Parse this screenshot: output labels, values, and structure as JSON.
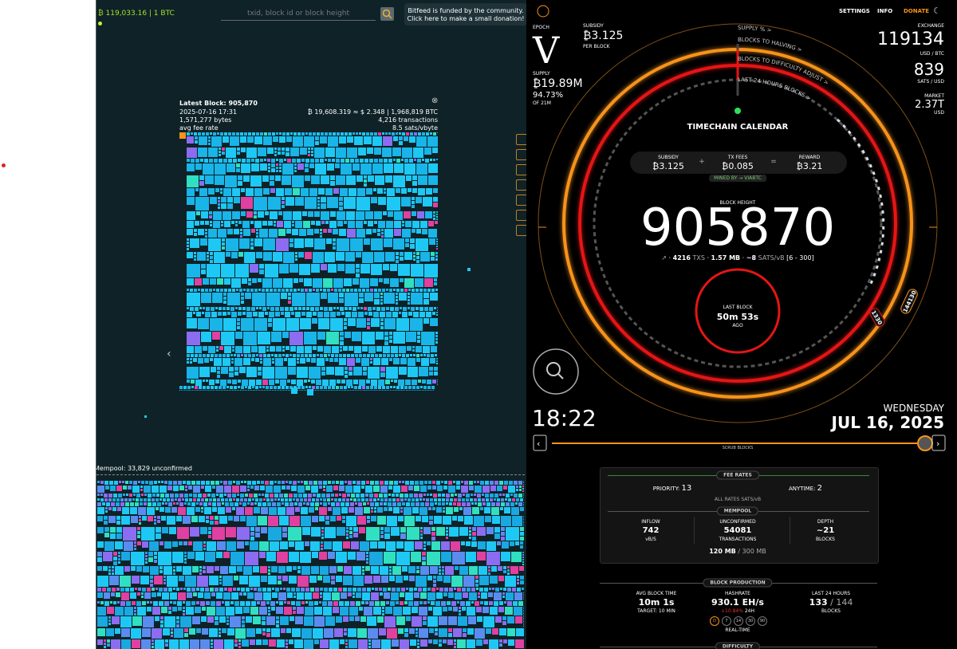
{
  "left": {
    "price": "₿ 119,033.16 | 1 BTC",
    "search_placeholder": "txid, block id or block height",
    "donation": [
      "Bitfeed is funded by the community.",
      "Click here to make a small donation!"
    ],
    "block": {
      "title": "Latest Block: 905,870",
      "time": "2025-07-16 17:31",
      "size": "1,571,277 bytes",
      "fee_label": "avg fee rate",
      "value": "₿ 19,608.319 ≈ $ 2.348 | 1,968,819 BTC",
      "transactions": "4,216 transactions",
      "fee_rate": "8.5 sats/vbyte"
    },
    "mempool": "Mempool: 33,829 unconfirmed"
  },
  "right": {
    "nav": [
      "SETTINGS",
      "INFO",
      "DONATE"
    ],
    "epoch": {
      "label": "EPOCH",
      "value": "V"
    },
    "subsidy": {
      "label": "SUBSIDY",
      "value": "₿3.125",
      "unit": "PER BLOCK"
    },
    "supply": {
      "label": "SUPPLY",
      "value": "₿19.89M",
      "percent": "94.73%",
      "unit": "OF 21M"
    },
    "exchange": {
      "label": "EXCHANGE",
      "price": "119134",
      "price_unit": "USD / BTC",
      "sats": "839",
      "sats_unit": "SATS / USD",
      "market_label": "MARKET",
      "market": "2.37T",
      "market_unit": "USD"
    },
    "rings": [
      "SUPPLY % >",
      "BLOCKS TO HALVING >",
      "BLOCKS TO DIFFICULTY ADJUST >",
      "LAST 24 HOURS BLOCKS >"
    ],
    "title": "TIMECHAIN CALENDAR",
    "reward": {
      "subsidy_label": "SUBSIDY",
      "subsidy": "₿3.125",
      "fees_label": "TX FEES",
      "fees": "₿0.085",
      "reward_label": "REWARD",
      "reward": "₿3.21",
      "miner": "MINED BY → VIABTC"
    },
    "height": {
      "label": "BLOCK HEIGHT",
      "value": "905870",
      "txs": "4216",
      "txs_unit": "TXS",
      "size": "1.57 MB",
      "fee": "~8",
      "fee_unit": "SATS/vB",
      "range": "[6 - 300]"
    },
    "last_block": {
      "label": "LAST BLOCK",
      "value": "50m 53s",
      "unit": "AGO"
    },
    "markers": [
      "1330",
      "144130"
    ],
    "time": "18:22",
    "weekday": "WEDNESDAY",
    "date": "JUL 16, 2025",
    "scrub": "SCRUB BLOCKS",
    "fees": {
      "title": "FEE RATES",
      "priority": "PRIORITY:",
      "priority_value": "13",
      "anytime": "ANYTIME:",
      "anytime_value": "2",
      "note": "ALL RATES SATS/vB"
    },
    "mempool": {
      "title": "MEMPOOL",
      "inflow_label": "INFLOW",
      "inflow": "742",
      "inflow_unit": "vB/S",
      "unconfirmed_label": "UNCONFIRMED",
      "unconfirmed": "54081",
      "unconfirmed_unit": "TRANSACTIONS",
      "depth_label": "DEPTH",
      "depth": "~21",
      "depth_unit": "BLOCKS",
      "size": "120 MB",
      "capacity": "/ 300 MB"
    },
    "production": {
      "title": "BLOCK PRODUCTION",
      "avg_label": "AVG BLOCK TIME",
      "avg": "10m 1s",
      "target": "TARGET: 10 MIN",
      "hash_label": "HASHRATE",
      "hash": "930.1 EH/s",
      "hash_change": "↓10.84%",
      "hash_period": "24H",
      "last_label": "LAST 24 HOURS",
      "last": "133",
      "last_total": "/ 144",
      "last_unit": "BLOCKS",
      "ranges": [
        "D",
        "7",
        "14",
        "30",
        "90"
      ],
      "mode": "REAL-TIME"
    },
    "difficulty": "DIFFICULTY"
  }
}
